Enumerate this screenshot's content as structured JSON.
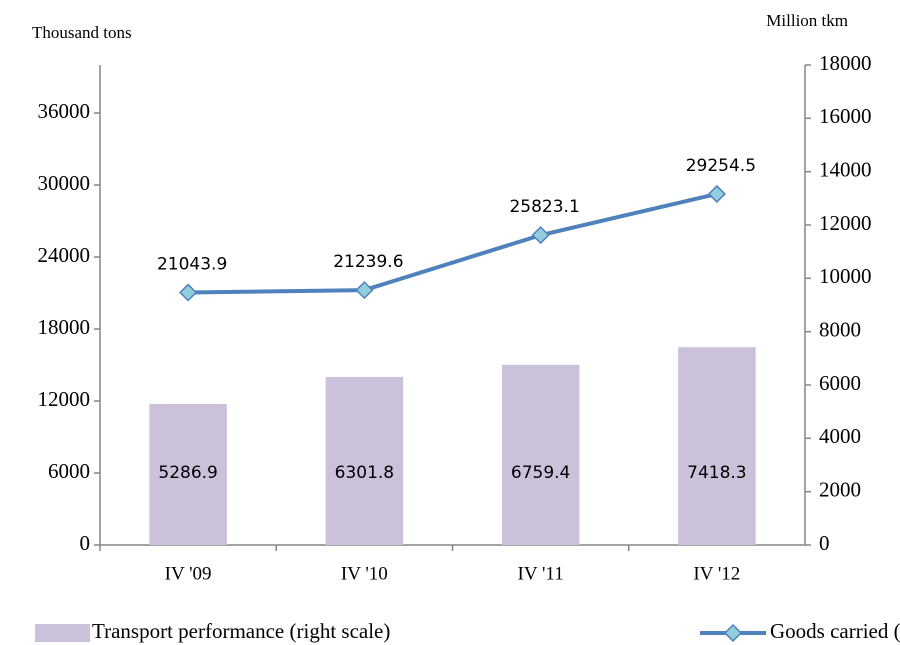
{
  "chart_data": {
    "type": "bar-line",
    "y_label": "Thousand tons",
    "y2_label": "Million tkm",
    "categories": [
      "IV '09",
      "IV '10",
      "IV '11",
      "IV '12"
    ],
    "series": [
      {
        "name": "Transport performance (right scale)",
        "type": "bar",
        "axis": "y2",
        "color": "#ccc1da",
        "values": [
          5286.9,
          6301.8,
          6759.4,
          7418.3
        ]
      },
      {
        "name": "Goods carried (left scale)",
        "type": "line",
        "axis": "y",
        "color": "#4f81bd",
        "marker_color": "#93cddd",
        "values": [
          21043.9,
          21239.6,
          25823.1,
          29254.5
        ]
      }
    ],
    "ylim": [
      0,
      40000
    ],
    "yticks": [
      0,
      6000,
      12000,
      18000,
      24000,
      30000,
      36000
    ],
    "y2lim": [
      0,
      18000
    ],
    "y2ticks": [
      0,
      2000,
      4000,
      6000,
      8000,
      10000,
      12000,
      14000,
      16000,
      18000
    ],
    "grid": false,
    "legend": "bottom"
  }
}
